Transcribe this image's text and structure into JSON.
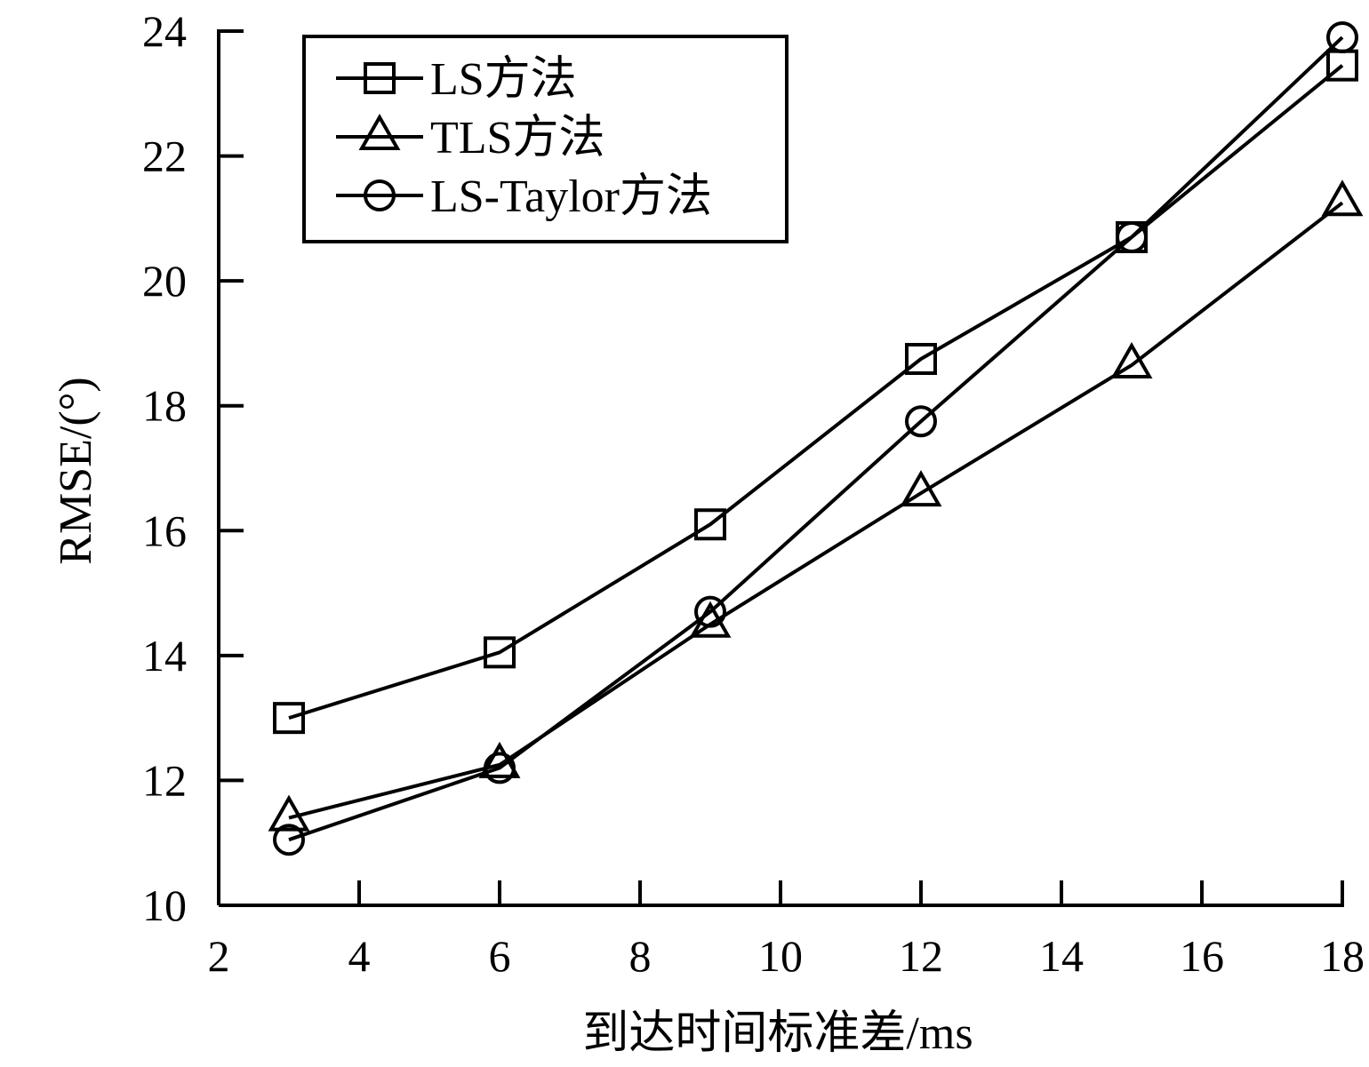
{
  "chart_data": {
    "type": "line",
    "title": "",
    "xlabel": "到达时间标准差/ms",
    "ylabel": "RMSE/(°)",
    "xlim": [
      2,
      18
    ],
    "ylim": [
      10,
      24
    ],
    "xticks": [
      "2",
      "4",
      "6",
      "8",
      "10",
      "12",
      "14",
      "16",
      "18"
    ],
    "yticks": [
      "10",
      "12",
      "14",
      "16",
      "18",
      "20",
      "22",
      "24"
    ],
    "x": [
      3,
      6,
      9,
      12,
      15,
      18
    ],
    "grid": false,
    "legend_position": "top-left",
    "series": [
      {
        "name": "LS方法",
        "marker": "square",
        "values": [
          13.0,
          14.05,
          16.1,
          18.75,
          20.7,
          23.45
        ]
      },
      {
        "name": "TLS方法",
        "marker": "triangle",
        "values": [
          11.4,
          12.25,
          14.5,
          16.6,
          18.65,
          21.25
        ]
      },
      {
        "name": "LS-Taylor方法",
        "marker": "circle",
        "values": [
          11.05,
          12.2,
          14.7,
          17.75,
          20.7,
          23.9
        ]
      }
    ],
    "colors": {
      "line": "#000000",
      "background": "#ffffff"
    }
  }
}
